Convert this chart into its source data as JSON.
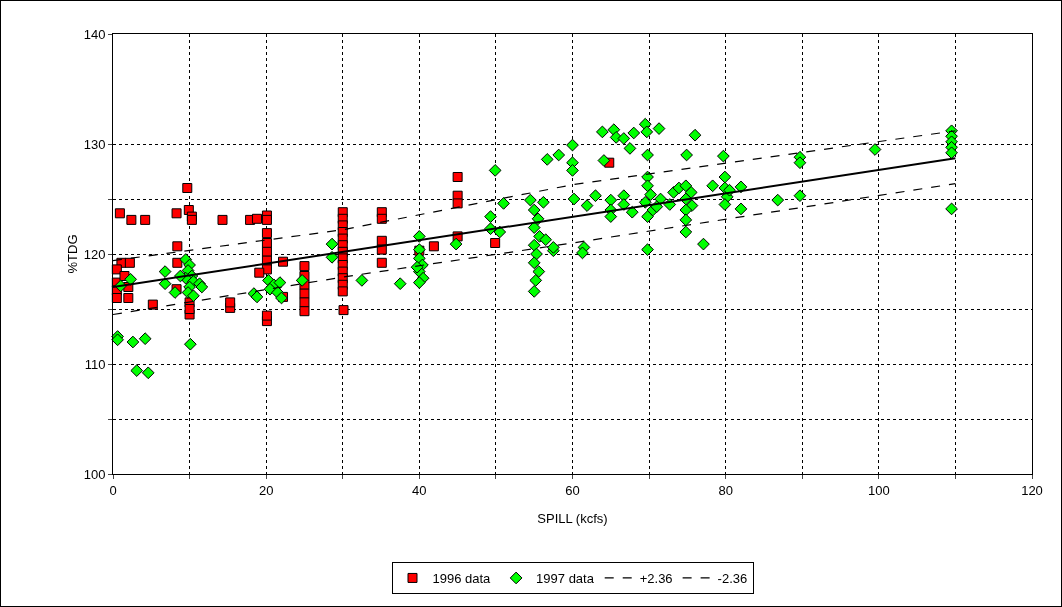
{
  "chart_data": {
    "type": "scatter",
    "xlabel": "SPILL (kcfs)",
    "ylabel": "%TDG",
    "xlim": [
      0,
      120
    ],
    "ylim": [
      100,
      140
    ],
    "xticks": [
      0,
      {
        "value": 10,
        "label": null
      },
      20,
      {
        "value": 30,
        "label": null
      },
      40,
      {
        "value": 50,
        "label": null
      },
      60,
      {
        "value": 70,
        "label": null
      },
      80,
      {
        "value": 90,
        "label": null
      },
      100,
      {
        "value": 110,
        "label": null
      },
      120
    ],
    "yticks": [
      100,
      {
        "value": 105,
        "label": null
      },
      110,
      {
        "value": 115,
        "label": null
      },
      120,
      {
        "value": 125,
        "label": null
      },
      130,
      140
    ],
    "grid": true,
    "legend": "bottom",
    "series": [
      {
        "name": "1996 data",
        "color": "#ff0000",
        "marker": "square",
        "x": [
          0.9,
          2.4,
          4.2,
          8.3,
          9.7,
          9.9,
          10.3,
          10.3,
          14.3,
          17.9,
          18.8,
          20.1,
          20.1,
          20.1,
          20.1,
          20.1,
          20.1,
          20.1,
          8.4,
          22.2,
          19.1,
          8.4,
          1.1,
          2.2,
          0.5,
          0.5,
          0.5,
          0.5,
          2.0,
          2.0,
          1.5,
          5.2,
          8.3,
          10,
          10,
          10,
          15.3,
          15.3,
          20.1,
          20.1,
          22.2,
          25,
          25,
          25,
          25,
          25,
          25,
          30,
          30,
          30,
          30,
          30,
          30,
          30,
          30,
          30,
          30,
          30,
          30,
          30,
          30.1,
          35.1,
          35.1,
          35.1,
          35.1,
          35.1,
          41.9,
          40,
          45,
          45,
          45,
          45,
          49.9,
          64.8
        ],
        "values": [
          123.7,
          123.1,
          123.1,
          123.7,
          126.0,
          124.0,
          123.4,
          123.1,
          123.1,
          123.1,
          123.2,
          123.5,
          123.1,
          121.9,
          121.0,
          120.2,
          119.4,
          118.6,
          120.7,
          119.3,
          118.3,
          119.2,
          119.2,
          119.2,
          118.6,
          117.4,
          116.7,
          116.0,
          116.0,
          117.0,
          118.0,
          115.4,
          116.8,
          115.6,
          114.5,
          115.0,
          115.1,
          115.6,
          113.9,
          114.4,
          116.1,
          118.9,
          118.0,
          117.2,
          116.4,
          115.6,
          114.8,
          123.8,
          123.2,
          122.6,
          122.0,
          121.4,
          120.8,
          120.2,
          119.6,
          119.0,
          118.4,
          117.8,
          117.2,
          116.6,
          114.9,
          123.8,
          123.2,
          121.2,
          120.4,
          119.2,
          120.7,
          120.3,
          127.0,
          125.3,
          124.6,
          121.6,
          121.0,
          128.3
        ]
      },
      {
        "name": "1997 data",
        "color": "#00ff00",
        "marker": "diamond",
        "x": [
          0.6,
          0.6,
          2.6,
          4.2,
          3.1,
          4.6,
          10.1,
          1.0,
          2.3,
          6.8,
          6.8,
          8.1,
          18.4,
          9.5,
          10,
          9.8,
          10.3,
          9.5,
          10.5,
          10,
          9.8,
          10.5,
          11.3,
          11.6,
          8.8,
          20.3,
          21.0,
          21.8,
          20.5,
          21.5,
          22.0,
          18.8,
          24.7,
          28.6,
          28.6,
          32.5,
          37.5,
          40,
          40,
          40,
          40.4,
          40,
          40.5,
          40,
          39.7,
          49.9,
          51.0,
          49.3,
          49.3,
          50.5,
          44.8,
          54.5,
          55,
          55.5,
          55,
          55.7,
          55,
          55.3,
          55,
          55.6,
          55.2,
          55,
          56.5,
          57.5,
          57.5,
          56.2,
          56.7,
          58.2,
          60,
          60,
          60,
          60.2,
          61.5,
          61.3,
          61.9,
          63.0,
          64.1,
          63.9,
          65.4,
          65.7,
          66.7,
          68.0,
          69.5,
          69.7,
          71.3,
          67.5,
          69.8,
          76.0,
          74.9,
          79.7,
          65,
          65,
          65,
          66.7,
          66.7,
          67.8,
          69.8,
          69.8,
          70.2,
          69.5,
          70.5,
          69.8,
          71.5,
          71.0,
          69.8,
          72.7,
          73.2,
          73.9,
          74.8,
          75.5,
          74.8,
          75.6,
          74.8,
          74.8,
          74.8,
          77.1,
          78.3,
          79.9,
          79.9,
          80.2,
          79.9,
          80.5,
          82.0,
          82.0,
          86.8,
          89.7,
          89.7,
          89.7,
          99.5,
          109.5,
          109.5,
          109.5,
          109.5,
          109.5,
          109.5
        ],
        "values": [
          112.5,
          112.2,
          112.0,
          112.3,
          109.4,
          109.2,
          111.8,
          117.1,
          117.7,
          118.4,
          117.3,
          116.5,
          116.4,
          119.5,
          119.0,
          118.5,
          118.0,
          117.8,
          117.5,
          117.0,
          116.5,
          116.2,
          117.3,
          117.0,
          118.0,
          117.6,
          117.2,
          117.4,
          116.8,
          116.5,
          116.0,
          116.1,
          117.6,
          120.9,
          119.7,
          117.6,
          117.3,
          121.6,
          120.4,
          119.6,
          119.0,
          118.4,
          117.8,
          117.4,
          118.8,
          127.6,
          124.6,
          123.4,
          122.3,
          122.0,
          120.9,
          124.9,
          124.0,
          123.2,
          122.4,
          121.6,
          120.8,
          120.0,
          119.2,
          118.4,
          117.6,
          116.6,
          121.3,
          120.3,
          120.6,
          124.7,
          128.6,
          129.0,
          129.9,
          128.3,
          127.6,
          125.0,
          120.6,
          120.1,
          124.4,
          125.3,
          128.5,
          131.1,
          131.3,
          130.6,
          130.5,
          131.0,
          131.8,
          131.1,
          131.4,
          129.6,
          129.0,
          130.8,
          129.0,
          128.9,
          124.9,
          124.0,
          123.4,
          125.3,
          124.5,
          123.8,
          127.0,
          126.2,
          125.4,
          124.7,
          124.0,
          123.4,
          125.0,
          124.3,
          120.4,
          124.5,
          125.6,
          126.0,
          126.2,
          125.6,
          125.0,
          124.4,
          124.0,
          123.1,
          122.0,
          120.9,
          126.2,
          127.0,
          126.0,
          125.2,
          124.5,
          125.8,
          126.1,
          124.1,
          124.9,
          128.8,
          128.3,
          125.3,
          129.5,
          131.2,
          130.7,
          130.2,
          129.7,
          129.2,
          124.1
        ]
      },
      {
        "type": "line",
        "color": "#000000",
        "marker": "none",
        "line_style": "solid",
        "x": [
          0,
          110
        ],
        "values": [
          117.0,
          128.7
        ]
      },
      {
        "type": "line",
        "name": "+2.36",
        "color": "#000000",
        "marker": "none",
        "line_style": "dashed",
        "x": [
          0,
          30,
          60,
          110
        ],
        "values": [
          119.4,
          122.2,
          126.3,
          131.2
        ]
      },
      {
        "type": "line",
        "name": "-2.36",
        "color": "#000000",
        "marker": "none",
        "line_style": "dashed",
        "x": [
          0,
          30,
          60,
          110
        ],
        "values": [
          114.5,
          117.9,
          121.0,
          126.4
        ]
      }
    ]
  }
}
